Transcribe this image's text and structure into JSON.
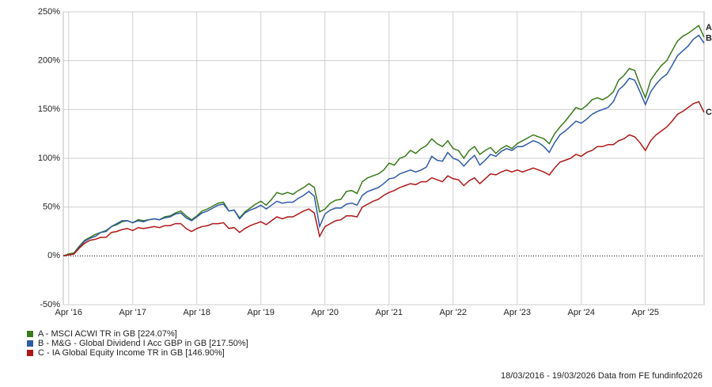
{
  "chart_data": {
    "type": "line",
    "footer": "18/03/2016 - 19/03/2026 Data from FE fundinfo2026",
    "x": [
      "2016-03",
      "2016-04",
      "2016-05",
      "2016-06",
      "2016-07",
      "2016-08",
      "2016-09",
      "2016-10",
      "2016-11",
      "2016-12",
      "2017-01",
      "2017-02",
      "2017-03",
      "2017-04",
      "2017-05",
      "2017-06",
      "2017-07",
      "2017-08",
      "2017-09",
      "2017-10",
      "2017-11",
      "2017-12",
      "2018-01",
      "2018-02",
      "2018-03",
      "2018-04",
      "2018-05",
      "2018-06",
      "2018-07",
      "2018-08",
      "2018-09",
      "2018-10",
      "2018-11",
      "2018-12",
      "2019-01",
      "2019-02",
      "2019-03",
      "2019-04",
      "2019-05",
      "2019-06",
      "2019-07",
      "2019-08",
      "2019-09",
      "2019-10",
      "2019-11",
      "2019-12",
      "2020-01",
      "2020-02",
      "2020-03",
      "2020-04",
      "2020-05",
      "2020-06",
      "2020-07",
      "2020-08",
      "2020-09",
      "2020-10",
      "2020-11",
      "2020-12",
      "2021-01",
      "2021-02",
      "2021-03",
      "2021-04",
      "2021-05",
      "2021-06",
      "2021-07",
      "2021-08",
      "2021-09",
      "2021-10",
      "2021-11",
      "2021-12",
      "2022-01",
      "2022-02",
      "2022-03",
      "2022-04",
      "2022-05",
      "2022-06",
      "2022-07",
      "2022-08",
      "2022-09",
      "2022-10",
      "2022-11",
      "2022-12",
      "2023-01",
      "2023-02",
      "2023-03",
      "2023-04",
      "2023-05",
      "2023-06",
      "2023-07",
      "2023-08",
      "2023-09",
      "2023-10",
      "2023-11",
      "2023-12",
      "2024-01",
      "2024-02",
      "2024-03",
      "2024-04",
      "2024-05",
      "2024-06",
      "2024-07",
      "2024-08",
      "2024-09",
      "2024-10",
      "2024-11",
      "2024-12",
      "2025-01",
      "2025-02",
      "2025-03",
      "2025-04",
      "2025-05",
      "2025-06",
      "2025-07",
      "2025-08",
      "2025-09",
      "2025-10",
      "2025-11",
      "2025-12",
      "2026-01",
      "2026-02",
      "2026-03"
    ],
    "series": [
      {
        "name": "A - MSCI ACWI TR in GB [224.07%]",
        "end_label": "A",
        "color": "#3a7a1a",
        "values": [
          0,
          2,
          3,
          10,
          16,
          19,
          22,
          24,
          26,
          30,
          32,
          35,
          36,
          34,
          37,
          36,
          37,
          38,
          37,
          40,
          41,
          44,
          46,
          41,
          37,
          41,
          46,
          48,
          51,
          54,
          55,
          46,
          47,
          39,
          45,
          49,
          53,
          56,
          52,
          58,
          65,
          63,
          65,
          63,
          67,
          70,
          74,
          70,
          45,
          48,
          54,
          57,
          58,
          66,
          67,
          64,
          76,
          80,
          82,
          84,
          88,
          95,
          93,
          100,
          102,
          108,
          105,
          110,
          113,
          120,
          115,
          112,
          118,
          110,
          108,
          100,
          108,
          112,
          104,
          108,
          111,
          105,
          110,
          113,
          110,
          115,
          118,
          121,
          124,
          122,
          120,
          115,
          125,
          132,
          138,
          145,
          152,
          150,
          154,
          160,
          162,
          160,
          163,
          168,
          180,
          185,
          192,
          190,
          175,
          162,
          180,
          188,
          195,
          200,
          210,
          220,
          225,
          228,
          232,
          236,
          224
        ]
      },
      {
        "name": "B - M&G - Global Dividend I Acc GBP in GB [217.50%]",
        "end_label": "B",
        "color": "#2f5aa8",
        "values": [
          0,
          1,
          2,
          9,
          15,
          18,
          20,
          24,
          25,
          30,
          33,
          36,
          36,
          34,
          36,
          35,
          37,
          38,
          37,
          39,
          40,
          43,
          44,
          39,
          36,
          40,
          44,
          46,
          49,
          52,
          53,
          46,
          47,
          38,
          44,
          47,
          49,
          52,
          48,
          52,
          56,
          54,
          55,
          55,
          59,
          62,
          66,
          61,
          30,
          43,
          47,
          49,
          49,
          53,
          54,
          52,
          62,
          66,
          68,
          70,
          74,
          79,
          80,
          84,
          86,
          88,
          86,
          88,
          91,
          102,
          98,
          97,
          106,
          100,
          98,
          92,
          98,
          103,
          93,
          98,
          104,
          102,
          107,
          110,
          108,
          112,
          112,
          115,
          118,
          116,
          112,
          106,
          116,
          124,
          128,
          133,
          138,
          136,
          140,
          145,
          148,
          150,
          152,
          158,
          170,
          175,
          182,
          180,
          168,
          155,
          168,
          176,
          182,
          186,
          195,
          205,
          210,
          215,
          222,
          226,
          218
        ]
      },
      {
        "name": "C - IA Global Equity Income TR in GB [146.90%]",
        "end_label": "C",
        "color": "#b01717",
        "values": [
          0,
          1,
          2,
          8,
          13,
          16,
          17,
          19,
          19,
          24,
          25,
          27,
          28,
          26,
          29,
          28,
          29,
          30,
          29,
          31,
          31,
          33,
          33,
          28,
          25,
          28,
          30,
          31,
          33,
          33,
          34,
          28,
          29,
          24,
          28,
          31,
          33,
          35,
          32,
          36,
          40,
          38,
          40,
          40,
          43,
          46,
          48,
          44,
          20,
          30,
          33,
          36,
          37,
          41,
          41,
          40,
          50,
          53,
          56,
          58,
          62,
          65,
          67,
          70,
          72,
          74,
          73,
          76,
          76,
          80,
          78,
          76,
          82,
          79,
          78,
          72,
          77,
          80,
          74,
          79,
          84,
          83,
          86,
          88,
          86,
          88,
          86,
          88,
          90,
          88,
          86,
          83,
          90,
          96,
          98,
          100,
          104,
          102,
          106,
          108,
          112,
          112,
          114,
          114,
          118,
          120,
          124,
          122,
          116,
          108,
          118,
          124,
          128,
          132,
          138,
          145,
          148,
          152,
          156,
          158,
          147
        ]
      }
    ],
    "xlim": [
      "2016-03",
      "2026-03"
    ],
    "xticks": [
      {
        "value": "2016-04",
        "label": "Apr '16"
      },
      {
        "value": "2017-04",
        "label": "Apr '17"
      },
      {
        "value": "2018-04",
        "label": "Apr '18"
      },
      {
        "value": "2019-04",
        "label": "Apr '19"
      },
      {
        "value": "2020-04",
        "label": "Apr '20"
      },
      {
        "value": "2021-04",
        "label": "Apr '21"
      },
      {
        "value": "2022-04",
        "label": "Apr '22"
      },
      {
        "value": "2023-04",
        "label": "Apr '23"
      },
      {
        "value": "2024-04",
        "label": "Apr '24"
      },
      {
        "value": "2025-04",
        "label": "Apr '25"
      }
    ],
    "ylim": [
      -50,
      250
    ],
    "yticks": [
      {
        "value": -50,
        "label": "-50%"
      },
      {
        "value": 0,
        "label": "0%"
      },
      {
        "value": 50,
        "label": "50%"
      },
      {
        "value": 100,
        "label": "100%"
      },
      {
        "value": 150,
        "label": "150%"
      },
      {
        "value": 200,
        "label": "200%"
      },
      {
        "value": 250,
        "label": "250%"
      }
    ],
    "grid": true
  }
}
